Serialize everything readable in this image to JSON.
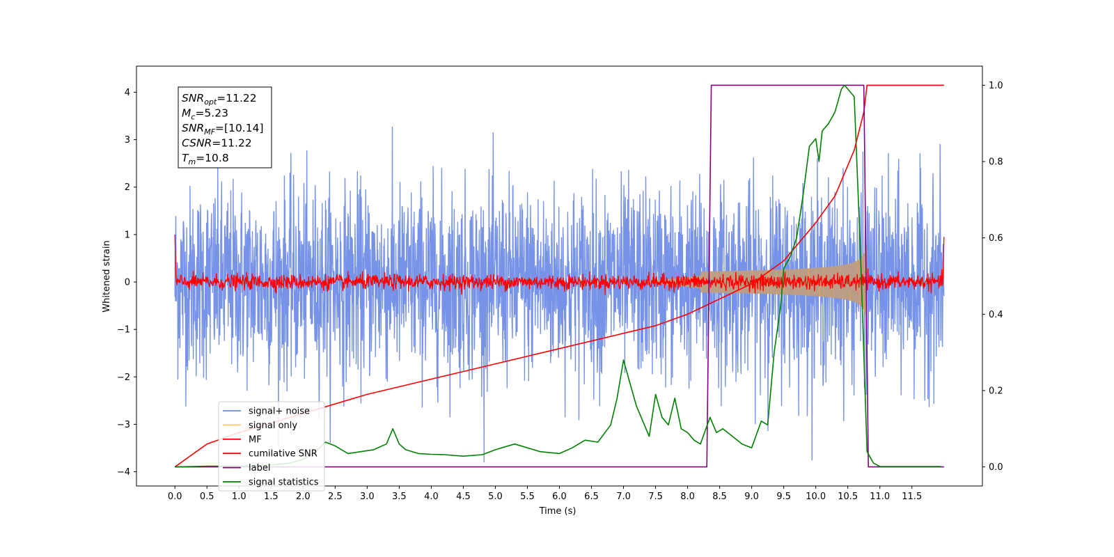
{
  "chart_data": {
    "type": "line",
    "xlabel": "Time (s)",
    "ylabel": "Whitened strain",
    "xlim": [
      -0.6,
      12.6
    ],
    "ylim": [
      -4.3,
      4.55
    ],
    "y2lim": [
      -0.05,
      1.05
    ],
    "grid": false,
    "legend_position": "lower-left",
    "x_ticks": [
      "0.0",
      "0.5",
      "1.0",
      "1.5",
      "2.0",
      "2.5",
      "3.0",
      "3.5",
      "4.0",
      "4.5",
      "5.0",
      "5.5",
      "6.0",
      "6.5",
      "7.0",
      "7.5",
      "8.0",
      "8.5",
      "9.0",
      "9.5",
      "10.0",
      "10.5",
      "11.0",
      "11.5"
    ],
    "y_ticks": [
      "4",
      "3",
      "2",
      "1",
      "0",
      "−1",
      "−2",
      "−3",
      "−4"
    ],
    "y2_ticks": [
      "1.0",
      "0.8",
      "0.6",
      "0.4",
      "0.2",
      "0.0"
    ],
    "info_box": [
      {
        "main": "SNR",
        "sub": "opt",
        "rest": "=11.22"
      },
      {
        "main": "M",
        "sub": "c",
        "rest": "=5.23"
      },
      {
        "main": "SNR",
        "sub": "MF",
        "rest": "=[10.14]"
      },
      {
        "main": "CSNR",
        "sub": "",
        "rest": "=11.22"
      },
      {
        "main": "T",
        "sub": "m",
        "rest": "=10.8"
      }
    ],
    "series": [
      {
        "name": "signal+ noise",
        "color": "#6b8ae6",
        "axis": "left",
        "kind": "noise",
        "t_range": [
          0,
          12
        ],
        "sigma": 1.0
      },
      {
        "name": "signal only",
        "color": "#f5b942",
        "axis": "left",
        "kind": "chirp",
        "t_range": [
          0,
          10.8
        ],
        "peak_amplitude": 0.75
      },
      {
        "name": "MF",
        "color": "#ff0000",
        "axis": "left",
        "kind": "noise",
        "t_range": [
          0,
          12
        ],
        "sigma": 0.08
      },
      {
        "name": "cumilative SNR",
        "color": "#ff0000",
        "axis": "right",
        "x": [
          0,
          0.5,
          1.0,
          2.0,
          3.0,
          4.0,
          5.0,
          6.0,
          7.0,
          7.5,
          8.0,
          8.5,
          9.0,
          9.5,
          10.0,
          10.3,
          10.6,
          10.75,
          10.8,
          11.0,
          12.0
        ],
        "y": [
          0.0,
          0.06,
          0.09,
          0.14,
          0.19,
          0.23,
          0.27,
          0.31,
          0.35,
          0.37,
          0.4,
          0.44,
          0.48,
          0.54,
          0.64,
          0.71,
          0.83,
          0.93,
          1.0,
          1.0,
          1.0
        ]
      },
      {
        "name": "label",
        "color": "#800080",
        "axis": "right",
        "x": [
          0,
          8.3,
          8.37,
          10.75,
          10.82,
          12.0
        ],
        "y": [
          0,
          0,
          1,
          1,
          0,
          0
        ]
      },
      {
        "name": "signal statistics",
        "color": "#008000",
        "axis": "right",
        "x": [
          0,
          0.5,
          1.0,
          1.5,
          1.8,
          2.0,
          2.2,
          2.35,
          2.5,
          2.7,
          2.9,
          3.1,
          3.3,
          3.4,
          3.5,
          3.6,
          3.8,
          4.0,
          4.2,
          4.5,
          4.8,
          5.0,
          5.3,
          5.5,
          5.7,
          6.0,
          6.2,
          6.4,
          6.6,
          6.8,
          6.9,
          7.0,
          7.1,
          7.2,
          7.3,
          7.4,
          7.5,
          7.6,
          7.7,
          7.8,
          7.9,
          8.0,
          8.1,
          8.2,
          8.35,
          8.45,
          8.55,
          8.7,
          8.85,
          9.0,
          9.15,
          9.25,
          9.35,
          9.45,
          9.5,
          9.6,
          9.7,
          9.8,
          9.9,
          10.0,
          10.05,
          10.1,
          10.2,
          10.3,
          10.4,
          10.45,
          10.5,
          10.6,
          10.7,
          10.8,
          10.9,
          11.0,
          11.5,
          11.95
        ],
        "y": [
          0.0,
          0.002,
          0.002,
          0.005,
          0.01,
          0.02,
          0.04,
          0.065,
          0.055,
          0.035,
          0.04,
          0.045,
          0.06,
          0.1,
          0.06,
          0.045,
          0.035,
          0.033,
          0.032,
          0.028,
          0.032,
          0.045,
          0.06,
          0.05,
          0.04,
          0.035,
          0.05,
          0.07,
          0.065,
          0.11,
          0.18,
          0.28,
          0.22,
          0.16,
          0.12,
          0.08,
          0.19,
          0.13,
          0.11,
          0.18,
          0.1,
          0.09,
          0.07,
          0.06,
          0.13,
          0.09,
          0.1,
          0.08,
          0.06,
          0.05,
          0.12,
          0.11,
          0.3,
          0.42,
          0.52,
          0.55,
          0.6,
          0.71,
          0.84,
          0.86,
          0.8,
          0.88,
          0.9,
          0.93,
          0.99,
          1.0,
          0.99,
          0.97,
          0.55,
          0.04,
          0.01,
          0.001,
          0.001,
          0.001
        ]
      }
    ]
  }
}
